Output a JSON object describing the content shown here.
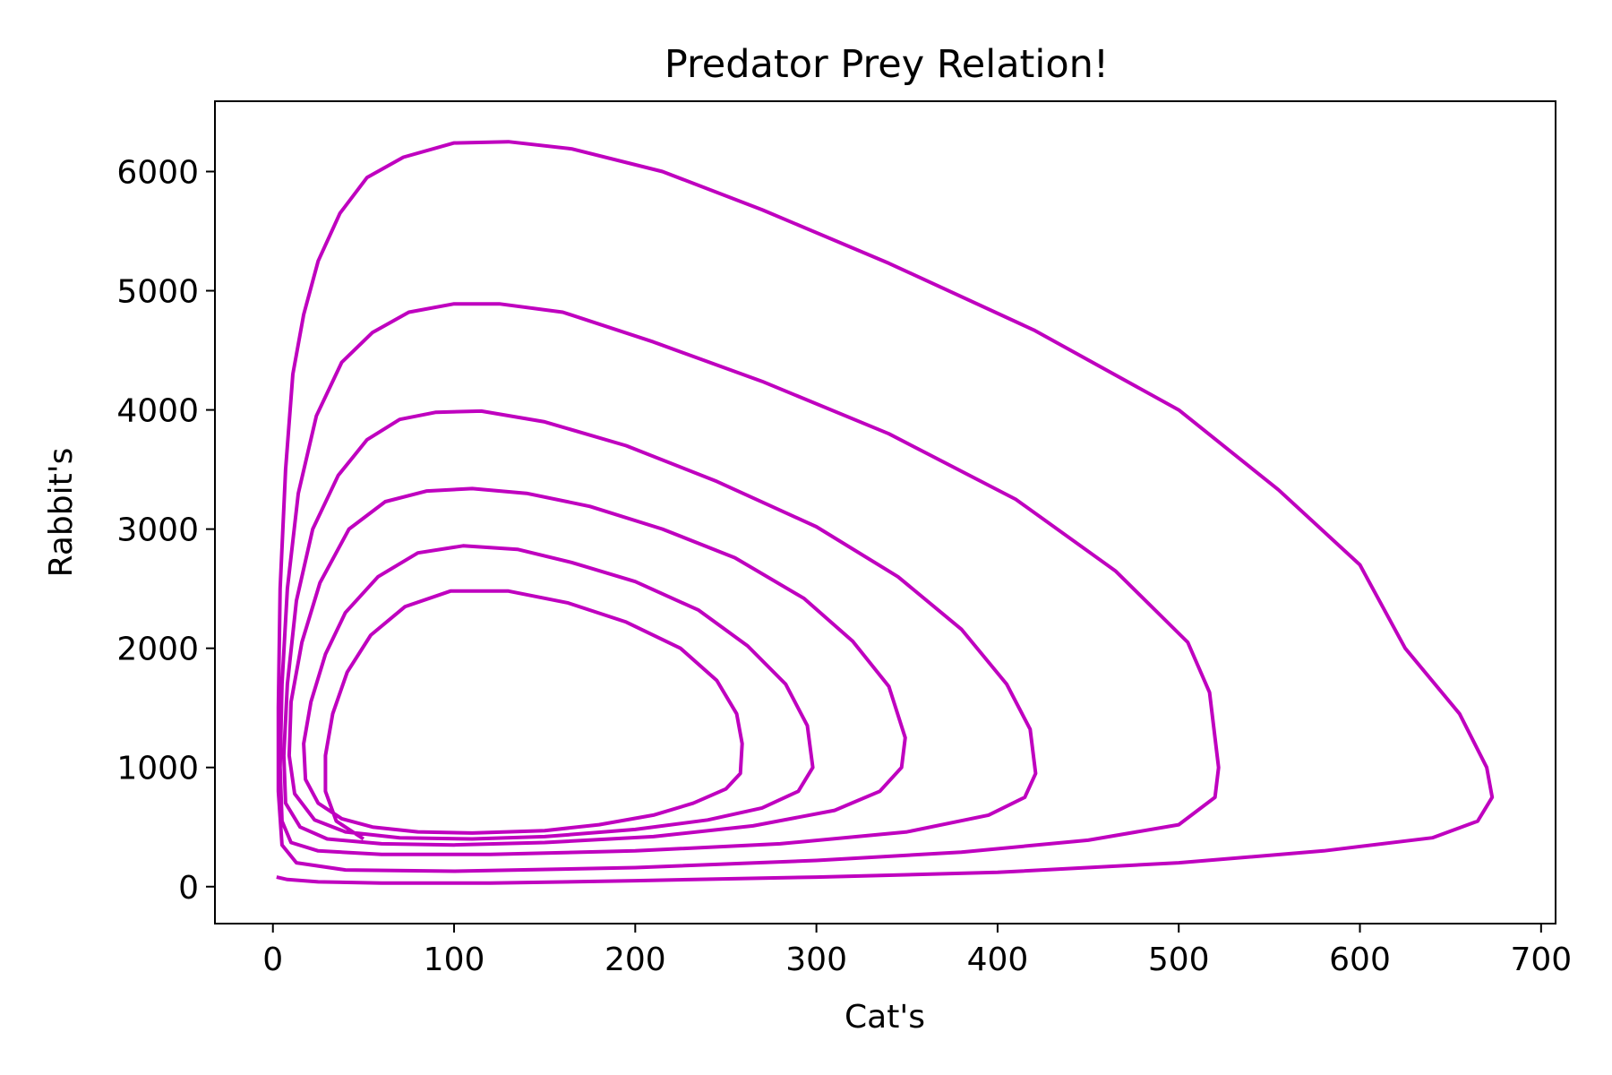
{
  "chart_data": {
    "type": "line",
    "title": "Predator Prey Relation!",
    "xlabel": "Cat's",
    "ylabel": "Rabbit's",
    "xlim": [
      -32,
      708
    ],
    "ylim": [
      -310,
      6590
    ],
    "xticks": [
      0,
      100,
      200,
      300,
      400,
      500,
      600,
      700
    ],
    "yticks": [
      0,
      1000,
      2000,
      3000,
      4000,
      5000,
      6000
    ],
    "xtick_labels": [
      "0",
      "100",
      "200",
      "300",
      "400",
      "500",
      "600",
      "700"
    ],
    "ytick_labels": [
      "0",
      "1000",
      "2000",
      "3000",
      "4000",
      "5000",
      "6000"
    ],
    "grid": false,
    "line_color": "#bf00bf",
    "series": [
      {
        "points": [
          [
            50,
            400
          ],
          [
            35,
            550
          ],
          [
            29,
            800
          ],
          [
            29,
            1100
          ],
          [
            33,
            1450
          ],
          [
            41,
            1800
          ],
          [
            54,
            2110
          ],
          [
            73,
            2350
          ],
          [
            98,
            2480
          ],
          [
            130,
            2480
          ],
          [
            163,
            2380
          ],
          [
            195,
            2220
          ],
          [
            225,
            2000
          ],
          [
            245,
            1730
          ],
          [
            256,
            1450
          ],
          [
            259,
            1200
          ],
          [
            258,
            950
          ],
          [
            250,
            820
          ],
          [
            232,
            700
          ],
          [
            210,
            600
          ],
          [
            180,
            520
          ],
          [
            150,
            470
          ],
          [
            110,
            450
          ],
          [
            80,
            460
          ],
          [
            55,
            500
          ],
          [
            38,
            570
          ],
          [
            25,
            700
          ],
          [
            18,
            900
          ],
          [
            17,
            1200
          ],
          [
            21,
            1550
          ],
          [
            29,
            1950
          ],
          [
            40,
            2300
          ],
          [
            58,
            2600
          ],
          [
            80,
            2800
          ],
          [
            105,
            2860
          ],
          [
            135,
            2830
          ],
          [
            165,
            2720
          ],
          [
            200,
            2560
          ],
          [
            235,
            2320
          ],
          [
            262,
            2020
          ],
          [
            283,
            1700
          ],
          [
            295,
            1350
          ],
          [
            298,
            1000
          ],
          [
            290,
            800
          ],
          [
            270,
            660
          ],
          [
            240,
            560
          ],
          [
            200,
            480
          ],
          [
            150,
            420
          ],
          [
            110,
            400
          ],
          [
            70,
            410
          ],
          [
            40,
            460
          ],
          [
            23,
            560
          ],
          [
            12,
            780
          ],
          [
            9,
            1100
          ],
          [
            10,
            1550
          ],
          [
            16,
            2050
          ],
          [
            26,
            2550
          ],
          [
            42,
            3000
          ],
          [
            62,
            3230
          ],
          [
            85,
            3320
          ],
          [
            110,
            3340
          ],
          [
            140,
            3300
          ],
          [
            175,
            3190
          ],
          [
            215,
            3000
          ],
          [
            255,
            2760
          ],
          [
            293,
            2420
          ],
          [
            320,
            2060
          ],
          [
            340,
            1680
          ],
          [
            349,
            1250
          ],
          [
            347,
            1000
          ],
          [
            335,
            800
          ],
          [
            310,
            640
          ],
          [
            265,
            510
          ],
          [
            210,
            420
          ],
          [
            150,
            370
          ],
          [
            100,
            350
          ],
          [
            60,
            360
          ],
          [
            30,
            400
          ],
          [
            15,
            500
          ],
          [
            7,
            700
          ],
          [
            6,
            1100
          ],
          [
            8,
            1700
          ],
          [
            13,
            2400
          ],
          [
            22,
            3000
          ],
          [
            36,
            3450
          ],
          [
            52,
            3750
          ],
          [
            70,
            3920
          ],
          [
            90,
            3980
          ],
          [
            115,
            3990
          ],
          [
            150,
            3900
          ],
          [
            195,
            3700
          ],
          [
            245,
            3400
          ],
          [
            300,
            3020
          ],
          [
            345,
            2600
          ],
          [
            380,
            2160
          ],
          [
            405,
            1700
          ],
          [
            418,
            1320
          ],
          [
            421,
            950
          ],
          [
            415,
            750
          ],
          [
            395,
            600
          ],
          [
            350,
            460
          ],
          [
            280,
            360
          ],
          [
            200,
            300
          ],
          [
            120,
            270
          ],
          [
            60,
            270
          ],
          [
            25,
            300
          ],
          [
            10,
            370
          ],
          [
            5,
            550
          ],
          [
            4,
            1000
          ],
          [
            5,
            1700
          ],
          [
            8,
            2500
          ],
          [
            14,
            3300
          ],
          [
            24,
            3950
          ],
          [
            38,
            4400
          ],
          [
            55,
            4650
          ],
          [
            75,
            4820
          ],
          [
            100,
            4890
          ],
          [
            125,
            4890
          ],
          [
            160,
            4820
          ],
          [
            210,
            4570
          ],
          [
            270,
            4240
          ],
          [
            340,
            3800
          ],
          [
            410,
            3250
          ],
          [
            465,
            2650
          ],
          [
            505,
            2050
          ],
          [
            517,
            1630
          ],
          [
            522,
            1000
          ],
          [
            520,
            750
          ],
          [
            500,
            520
          ],
          [
            450,
            390
          ],
          [
            380,
            290
          ],
          [
            300,
            220
          ],
          [
            200,
            160
          ],
          [
            100,
            130
          ],
          [
            40,
            140
          ],
          [
            13,
            200
          ],
          [
            5,
            350
          ],
          [
            3,
            800
          ],
          [
            3,
            1500
          ],
          [
            4,
            2500
          ],
          [
            7,
            3500
          ],
          [
            11,
            4300
          ],
          [
            17,
            4800
          ],
          [
            25,
            5250
          ],
          [
            37,
            5650
          ],
          [
            52,
            5950
          ],
          [
            72,
            6120
          ],
          [
            100,
            6240
          ],
          [
            130,
            6250
          ],
          [
            165,
            6190
          ],
          [
            215,
            6000
          ],
          [
            270,
            5680
          ],
          [
            340,
            5230
          ],
          [
            420,
            4670
          ],
          [
            500,
            4000
          ],
          [
            555,
            3330
          ],
          [
            600,
            2700
          ],
          [
            625,
            2000
          ],
          [
            655,
            1450
          ],
          [
            670,
            1000
          ],
          [
            673,
            750
          ],
          [
            665,
            550
          ],
          [
            640,
            410
          ],
          [
            580,
            300
          ],
          [
            500,
            200
          ],
          [
            400,
            120
          ],
          [
            300,
            80
          ],
          [
            200,
            50
          ],
          [
            120,
            30
          ],
          [
            60,
            30
          ],
          [
            25,
            40
          ],
          [
            8,
            60
          ],
          [
            2,
            80
          ]
        ]
      }
    ]
  }
}
